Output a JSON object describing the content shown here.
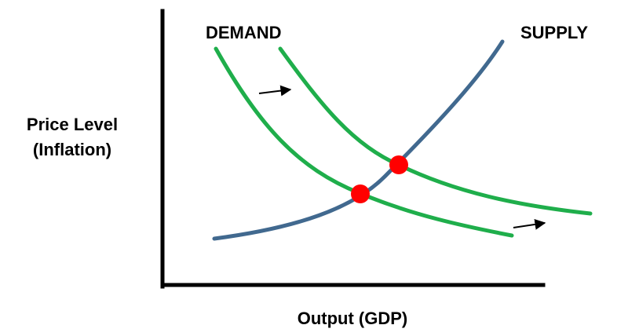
{
  "labels": {
    "demand": "DEMAND",
    "supply": "SUPPLY",
    "y_axis_line1": "Price Level",
    "y_axis_line2": "(Inflation)",
    "x_axis": "Output (GDP)"
  },
  "colors": {
    "demand_curve": "#1fae4b",
    "supply_curve": "#41698f",
    "equilibrium_point": "#ff0000",
    "axes": "#000000",
    "arrow": "#000000"
  },
  "icons": {
    "shift_arrow": "right-arrow-icon",
    "equilibrium_marker": "red-dot"
  }
}
